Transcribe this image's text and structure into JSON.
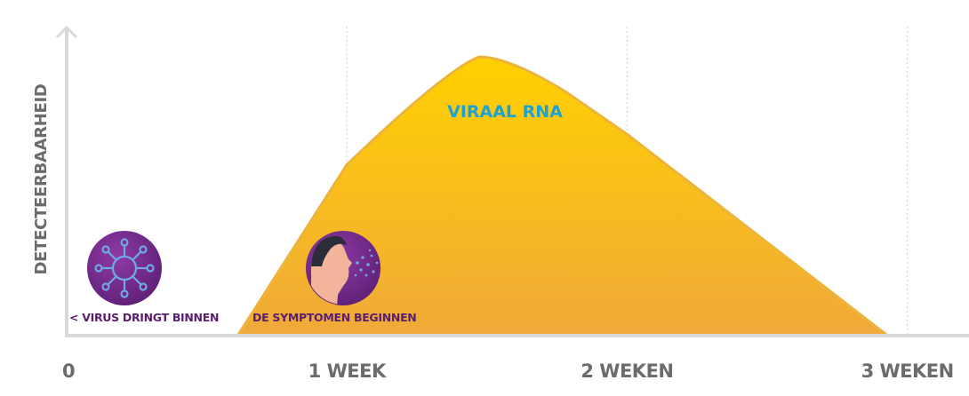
{
  "chart_data": {
    "type": "area",
    "ylabel": "DETECTEERBAARHEID",
    "x_unit": "weeks",
    "xlim": [
      0,
      3.22
    ],
    "ylim": [
      0,
      1.12
    ],
    "y_ticks_shown": false,
    "grid": "vertical dotted at week ticks",
    "x_ticks": [
      {
        "value": 0,
        "label": "0"
      },
      {
        "value": 1,
        "label": "1 WEEK"
      },
      {
        "value": 2,
        "label": "2 WEKEN"
      },
      {
        "value": 3,
        "label": "3 WEKEN"
      }
    ],
    "series": [
      {
        "name": "VIRAAL RNA",
        "color_top": "#FFD100",
        "color_bottom": "#F0A93A",
        "outline": "#EDB43C",
        "label_color": "#1BA3D6",
        "x": [
          0.61,
          1.0,
          1.35,
          1.47,
          1.56,
          2.0,
          2.93
        ],
        "y": [
          0.0,
          0.62,
          0.96,
          1.01,
          1.0,
          0.73,
          0.0
        ]
      }
    ],
    "annotations": [
      {
        "label": "< VIRUS DRINGT BINNEN",
        "icon": "virus-icon",
        "x": 0.0,
        "color": "#5A1E6E"
      },
      {
        "label": "DE SYMPTOMEN BEGINNEN",
        "icon": "sneezing-person-icon",
        "x": 0.66,
        "color": "#5A1E6E"
      }
    ]
  },
  "colors": {
    "axis": "#D9D9D9",
    "tick_text": "#6B6B6B",
    "grid": "#D5D5D5",
    "icon_circle": "#7A2E8F",
    "icon_line": "#6FA8E8"
  }
}
